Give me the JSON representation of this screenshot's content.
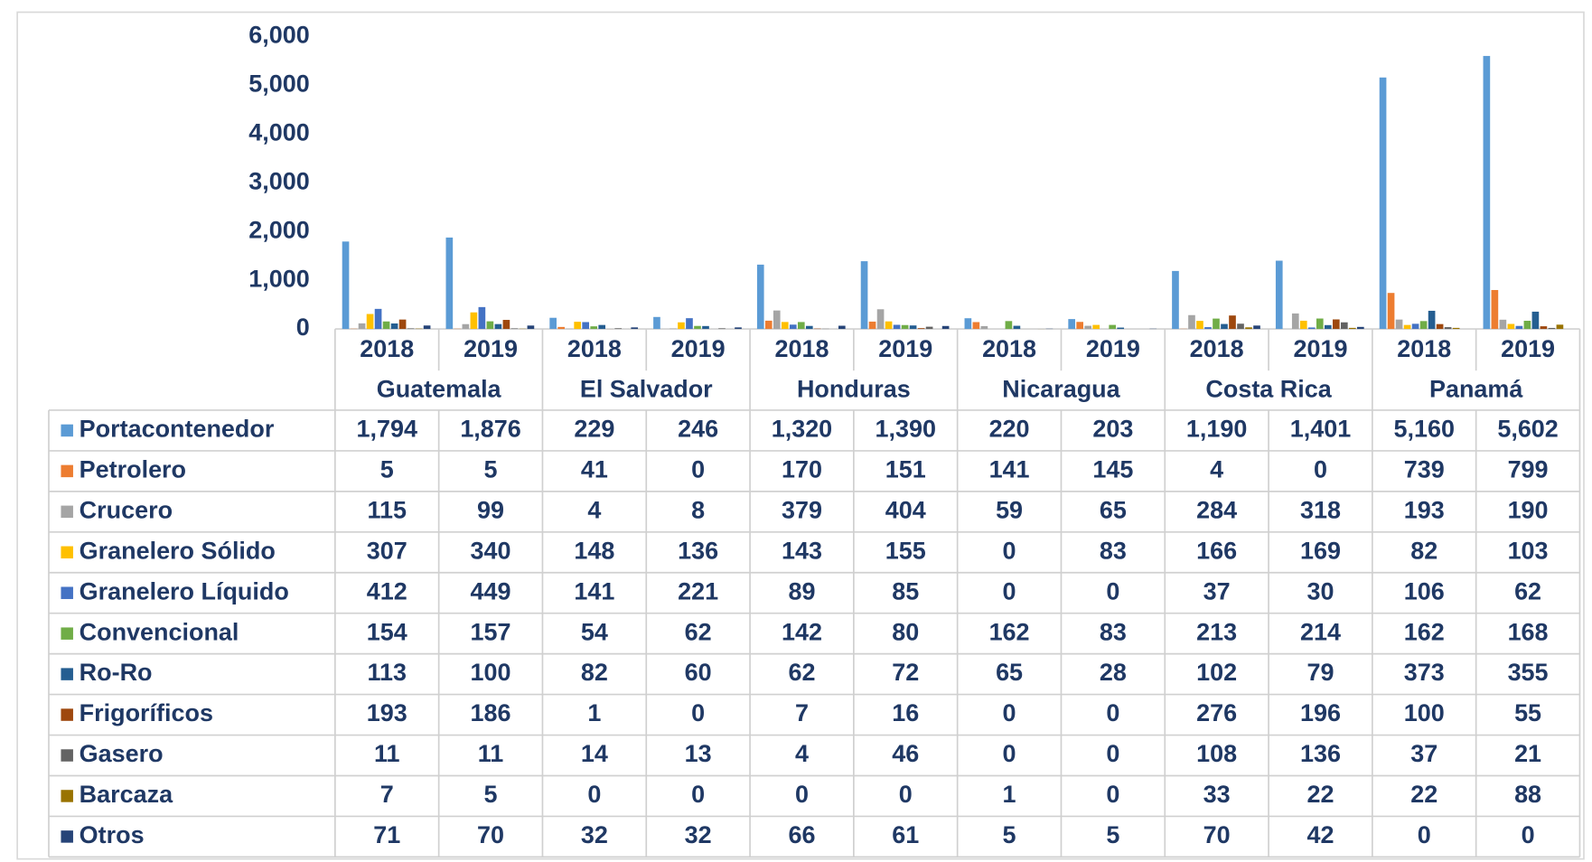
{
  "chart_data": {
    "type": "bar",
    "categories": [
      "2018",
      "2019",
      "2018",
      "2019",
      "2018",
      "2019",
      "2018",
      "2019",
      "2018",
      "2019",
      "2018",
      "2019"
    ],
    "groups": [
      "Guatemala",
      "El Salvador",
      "Honduras",
      "Nicaragua",
      "Costa Rica",
      "Panamá"
    ],
    "ylim": [
      0,
      6000
    ],
    "yticks": [
      0,
      {
        "value": 1000,
        "label": "1,000"
      },
      {
        "value": 2000,
        "label": "2,000"
      },
      {
        "value": 3000,
        "label": "3,000"
      },
      {
        "value": 4000,
        "label": "4,000"
      },
      {
        "value": 5000,
        "label": "5,000"
      },
      {
        "value": 6000,
        "label": "6,000"
      }
    ],
    "grid": false,
    "series": [
      {
        "name": "Portacontenedor",
        "color": "#5B9BD5",
        "values": [
          1794,
          1876,
          229,
          246,
          1320,
          1390,
          220,
          203,
          1190,
          1401,
          5160,
          5602
        ],
        "value_labels": [
          "1,794",
          "1,876",
          "229",
          "246",
          "1,320",
          "1,390",
          "220",
          "203",
          "1,190",
          "1,401",
          "5,160",
          "5,602"
        ]
      },
      {
        "name": "Petrolero",
        "color": "#ED7D31",
        "values": [
          5,
          5,
          41,
          0,
          170,
          151,
          141,
          145,
          4,
          0,
          739,
          799
        ]
      },
      {
        "name": "Crucero",
        "color": "#A5A5A5",
        "values": [
          115,
          99,
          4,
          8,
          379,
          404,
          59,
          65,
          284,
          318,
          193,
          190
        ]
      },
      {
        "name": "Granelero Sólido",
        "color": "#FFC000",
        "values": [
          307,
          340,
          148,
          136,
          143,
          155,
          0,
          83,
          166,
          169,
          82,
          103
        ]
      },
      {
        "name": "Granelero Líquido",
        "color": "#4472C4",
        "values": [
          412,
          449,
          141,
          221,
          89,
          85,
          0,
          0,
          37,
          30,
          106,
          62
        ]
      },
      {
        "name": "Convencional",
        "color": "#70AD47",
        "values": [
          154,
          157,
          54,
          62,
          142,
          80,
          162,
          83,
          213,
          214,
          162,
          168
        ]
      },
      {
        "name": "Ro-Ro",
        "color": "#255E91",
        "values": [
          113,
          100,
          82,
          60,
          62,
          72,
          65,
          28,
          102,
          79,
          373,
          355
        ]
      },
      {
        "name": "Frigoríficos",
        "color": "#9E480E",
        "values": [
          193,
          186,
          1,
          0,
          7,
          16,
          0,
          0,
          276,
          196,
          100,
          55
        ]
      },
      {
        "name": "Gasero",
        "color": "#636363",
        "values": [
          11,
          11,
          14,
          13,
          4,
          46,
          0,
          0,
          108,
          136,
          37,
          21
        ]
      },
      {
        "name": "Barcaza",
        "color": "#997300",
        "values": [
          7,
          5,
          0,
          0,
          0,
          0,
          1,
          0,
          33,
          22,
          22,
          88
        ]
      },
      {
        "name": "Otros",
        "color": "#264478",
        "values": [
          71,
          70,
          32,
          32,
          66,
          61,
          5,
          5,
          70,
          42,
          0,
          0
        ]
      }
    ]
  }
}
